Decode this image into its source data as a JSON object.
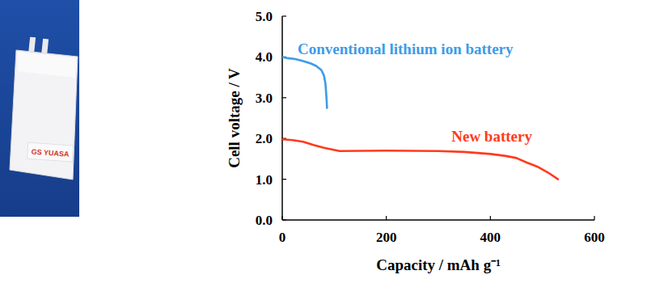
{
  "image": {
    "label": "GS YUASA"
  },
  "chart_data": {
    "type": "line",
    "x_label": "Capacity / mAh g⁻¹",
    "y_label": "Cell voltage / V",
    "xlim": [
      0,
      600
    ],
    "xticks": [
      0,
      200,
      400,
      600
    ],
    "ylim": [
      0,
      5
    ],
    "yticks": [
      {
        "value": 0,
        "label": "0.0"
      },
      {
        "value": 1,
        "label": "1.0"
      },
      {
        "value": 2,
        "label": "2.0"
      },
      {
        "value": 3,
        "label": "3.0"
      },
      {
        "value": 4,
        "label": "4.0"
      },
      {
        "value": 5,
        "label": "5.0"
      }
    ],
    "grid": false,
    "series": [
      {
        "name": "Conventional lithium ion battery",
        "color": "#3d9be9",
        "x": [
          0,
          10,
          25,
          40,
          55,
          65,
          75,
          80,
          83,
          85,
          86
        ],
        "values": [
          4.0,
          3.97,
          3.95,
          3.9,
          3.84,
          3.78,
          3.68,
          3.55,
          3.35,
          3.0,
          2.75
        ]
      },
      {
        "name": "New battery",
        "color": "#ff3a1c",
        "x": [
          0,
          20,
          40,
          60,
          80,
          110,
          200,
          300,
          350,
          400,
          430,
          450,
          470,
          490,
          510,
          530
        ],
        "values": [
          1.98,
          1.96,
          1.92,
          1.84,
          1.77,
          1.69,
          1.7,
          1.69,
          1.67,
          1.62,
          1.57,
          1.52,
          1.41,
          1.31,
          1.17,
          1.0
        ]
      }
    ]
  }
}
